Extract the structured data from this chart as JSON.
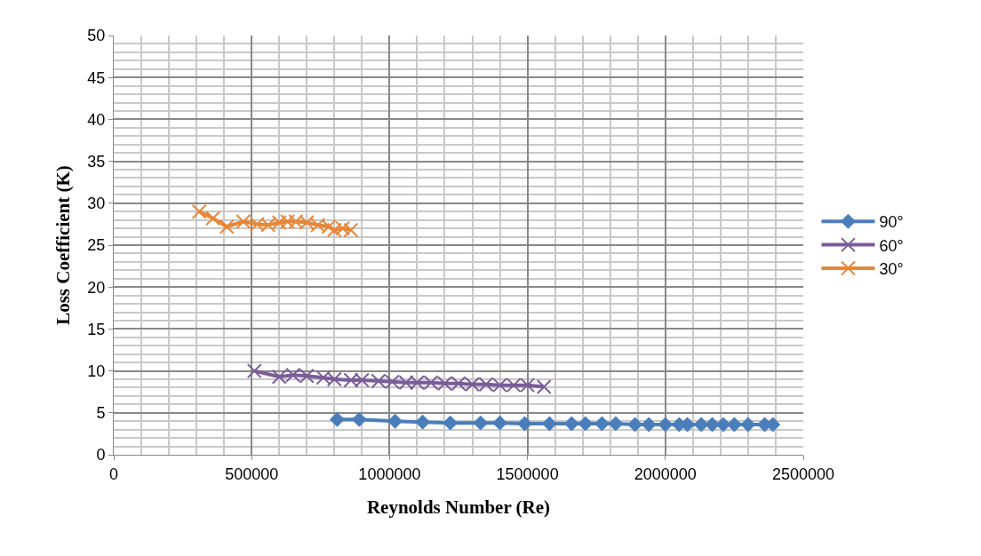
{
  "chart_data": {
    "type": "line",
    "xlabel": "Reynolds Number (Re)",
    "ylabel": "Loss Coefficient (K)",
    "xlim": [
      0,
      2500000
    ],
    "xticks": [
      0,
      500000,
      1000000,
      1500000,
      2000000,
      2500000
    ],
    "ylim": [
      0,
      50
    ],
    "yticks": [
      0,
      5,
      10,
      15,
      20,
      25,
      30,
      35,
      40,
      45,
      50
    ],
    "grid": true,
    "legend": "right",
    "line_style": "solid",
    "series": [
      {
        "name": "90°",
        "color": "#4a7ebb",
        "marker": "diamond",
        "x": [
          810000,
          890000,
          1020000,
          1120000,
          1220000,
          1330000,
          1400000,
          1490000,
          1580000,
          1660000,
          1710000,
          1770000,
          1820000,
          1890000,
          1940000,
          2000000,
          2050000,
          2080000,
          2130000,
          2170000,
          2210000,
          2250000,
          2300000,
          2360000,
          2390000
        ],
        "values": [
          4.2,
          4.2,
          4.0,
          3.9,
          3.8,
          3.8,
          3.8,
          3.7,
          3.7,
          3.7,
          3.7,
          3.7,
          3.7,
          3.6,
          3.6,
          3.6,
          3.6,
          3.6,
          3.6,
          3.6,
          3.6,
          3.6,
          3.6,
          3.6,
          3.6
        ]
      },
      {
        "name": "60°",
        "color": "#7a5c99",
        "marker": "cross",
        "x": [
          510000,
          600000,
          650000,
          700000,
          760000,
          800000,
          860000,
          900000,
          960000,
          1010000,
          1060000,
          1100000,
          1150000,
          1200000,
          1250000,
          1300000,
          1350000,
          1400000,
          1450000,
          1500000,
          1560000
        ],
        "values": [
          10.0,
          9.3,
          9.5,
          9.4,
          9.2,
          9.0,
          8.9,
          8.9,
          8.8,
          8.7,
          8.6,
          8.6,
          8.6,
          8.5,
          8.5,
          8.4,
          8.4,
          8.3,
          8.3,
          8.3,
          8.1
        ]
      },
      {
        "name": "30°",
        "color": "#e6873a",
        "marker": "cross",
        "x": [
          310000,
          360000,
          410000,
          470000,
          520000,
          560000,
          600000,
          630000,
          660000,
          700000,
          740000,
          780000,
          800000,
          830000,
          860000
        ],
        "values": [
          29.0,
          28.2,
          27.2,
          27.8,
          27.5,
          27.4,
          27.7,
          27.8,
          27.8,
          27.7,
          27.4,
          27.2,
          26.8,
          27.0,
          26.8
        ]
      }
    ]
  }
}
